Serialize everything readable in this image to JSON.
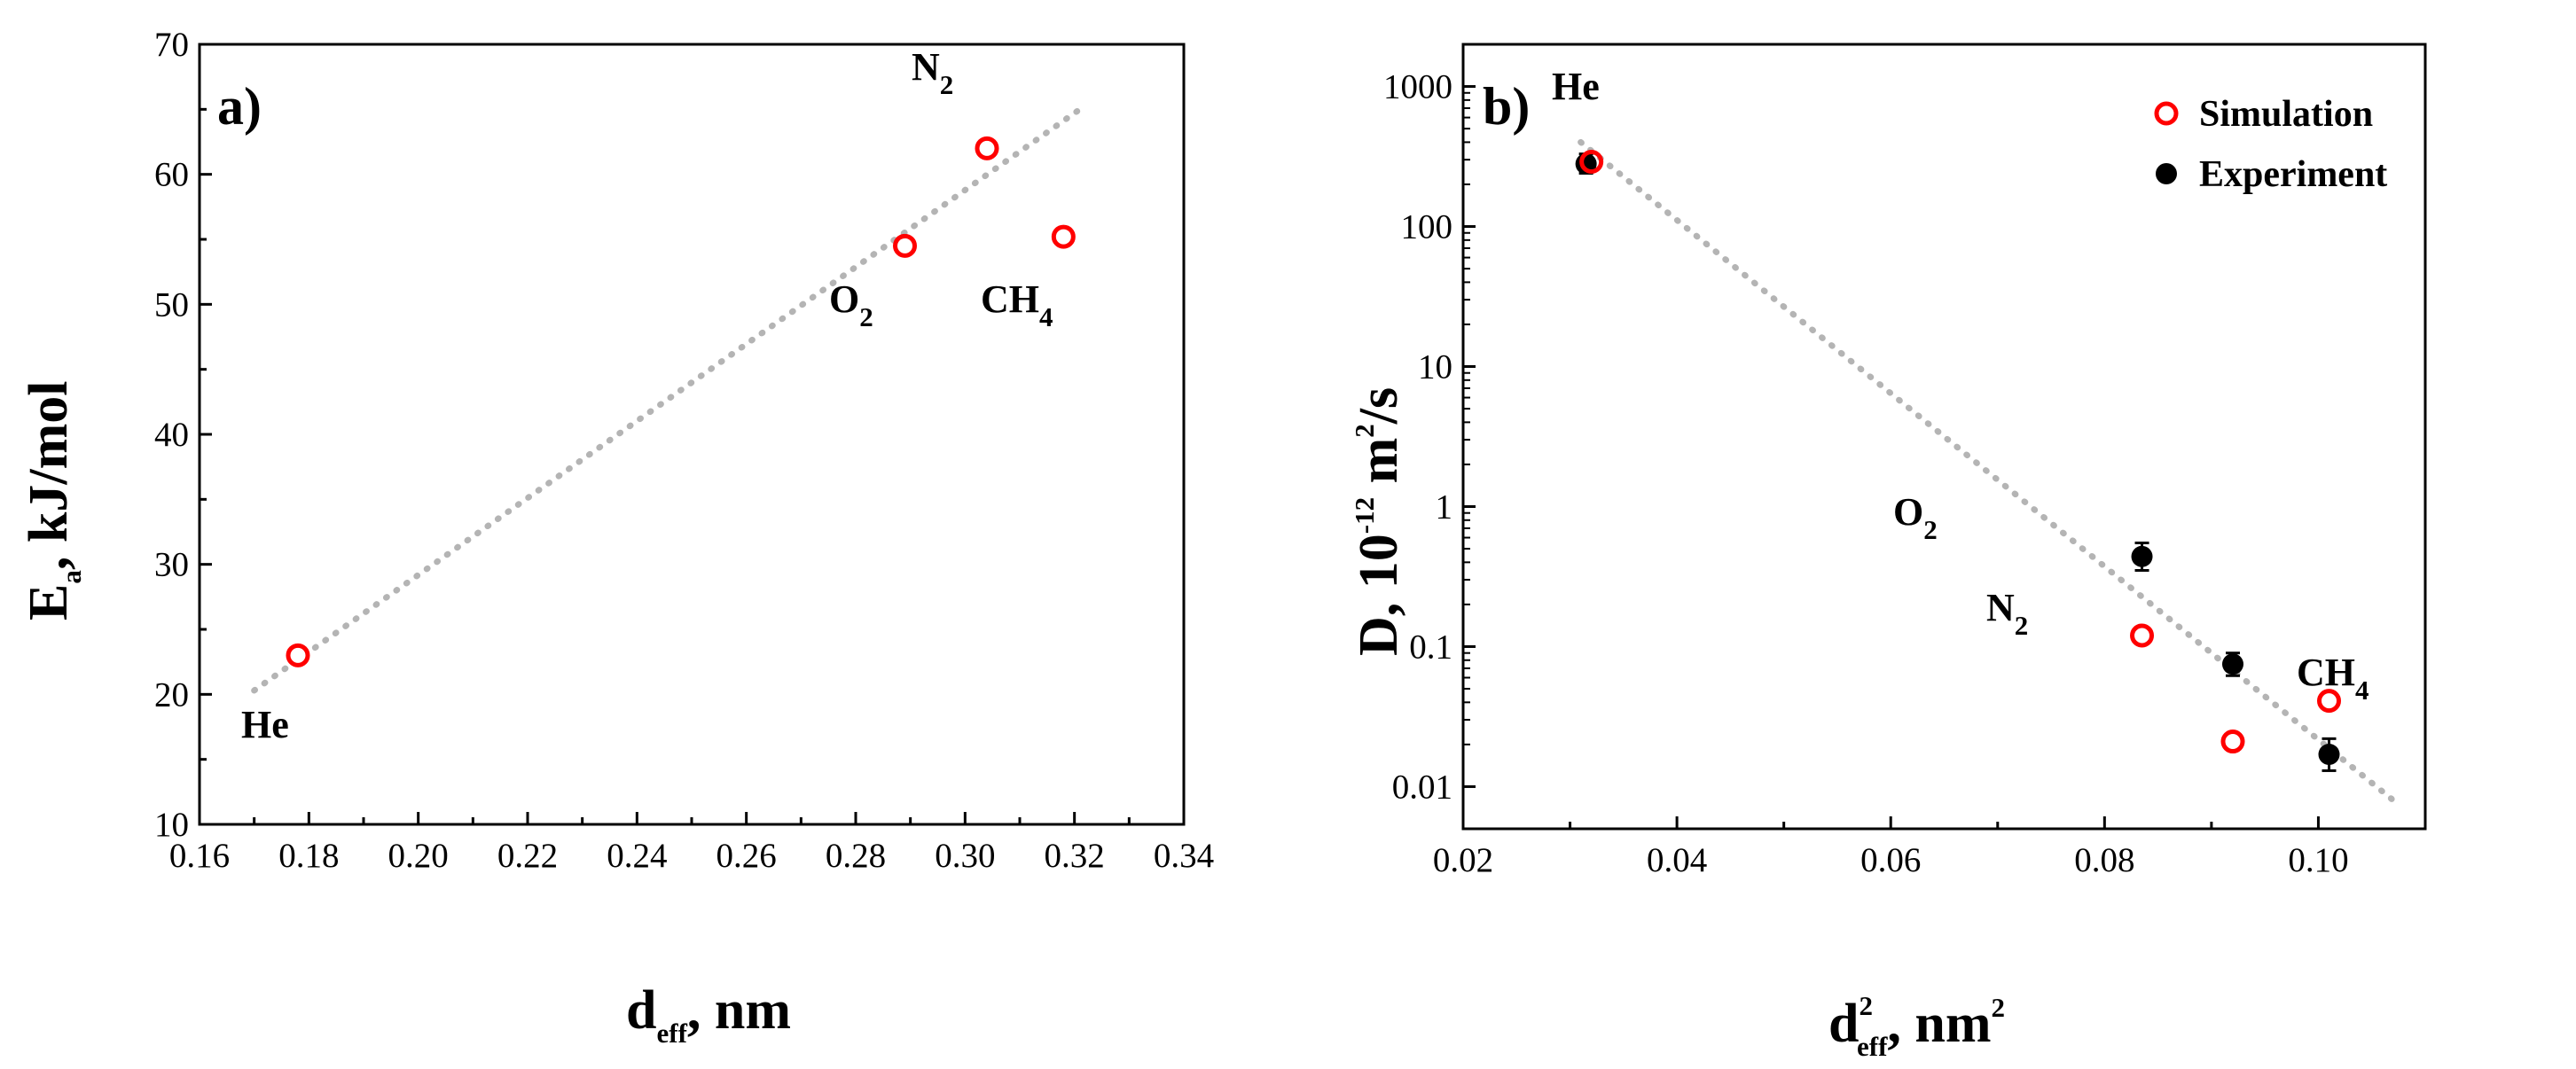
{
  "chart_data": [
    {
      "type": "scatter",
      "panel_label": "a)",
      "xlabel": {
        "main": "d",
        "sub": "eff",
        "rest": ", nm"
      },
      "ylabel": {
        "main": "E",
        "sub": "a",
        "rest": ", kJ/mol"
      },
      "xlim": [
        0.16,
        0.34
      ],
      "ylim": [
        10,
        70
      ],
      "xticks": [
        "0.16",
        "0.18",
        "0.20",
        "0.22",
        "0.24",
        "0.26",
        "0.28",
        "0.30",
        "0.32",
        "0.34"
      ],
      "yticks": [
        "10",
        "20",
        "30",
        "40",
        "50",
        "60",
        "70"
      ],
      "series": [
        {
          "name": "Simulation",
          "marker": "open-circle",
          "color": "#ff0000",
          "points": [
            {
              "x": 0.178,
              "y": 23.0,
              "label": "He"
            },
            {
              "x": 0.289,
              "y": 54.5,
              "label": "O2"
            },
            {
              "x": 0.304,
              "y": 62.0,
              "label": "N2"
            },
            {
              "x": 0.318,
              "y": 55.2,
              "label": "CH4"
            }
          ]
        }
      ],
      "fit_line": {
        "style": "dotted",
        "color": "#b4b4b4",
        "x": [
          0.17,
          0.322
        ],
        "y": [
          20.3,
          65.3
        ]
      },
      "annotations": [
        {
          "main": "He",
          "sub": ""
        },
        {
          "main": "O",
          "sub": "2"
        },
        {
          "main": "N",
          "sub": "2"
        },
        {
          "main": "CH",
          "sub": "4"
        }
      ]
    },
    {
      "type": "scatter",
      "panel_label": "b)",
      "xlabel": {
        "main": "d",
        "sup": "2",
        "sub": "eff",
        "rest": ", nm",
        "rest_sup": "2"
      },
      "ylabel": {
        "main": "D, 10",
        "sup": "-12",
        "rest": " m",
        "rest_sup": "2",
        "tail": "/s"
      },
      "yscale": "log",
      "xlim": [
        0.02,
        0.11
      ],
      "ylim": [
        0.005,
        2000
      ],
      "xticks": [
        "0.02",
        "0.04",
        "0.06",
        "0.08",
        "0.10"
      ],
      "yticks": [
        "0.01",
        "0.1",
        "1",
        "10",
        "100",
        "1000"
      ],
      "series": [
        {
          "name": "Simulation",
          "marker": "open-circle",
          "color": "#ff0000",
          "points": [
            {
              "x": 0.032,
              "y": 290
            },
            {
              "x": 0.0835,
              "y": 0.12
            },
            {
              "x": 0.092,
              "y": 0.021
            },
            {
              "x": 0.101,
              "y": 0.041
            }
          ]
        },
        {
          "name": "Experiment",
          "marker": "filled-circle",
          "color": "#000000",
          "points": [
            {
              "x": 0.0315,
              "y": 280,
              "err_lo": 240,
              "err_hi": 330
            },
            {
              "x": 0.0835,
              "y": 0.44,
              "err_lo": 0.35,
              "err_hi": 0.55
            },
            {
              "x": 0.092,
              "y": 0.075,
              "err_lo": 0.062,
              "err_hi": 0.09
            },
            {
              "x": 0.101,
              "y": 0.017,
              "err_lo": 0.013,
              "err_hi": 0.022
            }
          ]
        }
      ],
      "fit_line": {
        "style": "dotted",
        "color": "#b4b4b4",
        "x": [
          0.031,
          0.107
        ],
        "y": [
          400,
          0.008
        ]
      },
      "annotations": [
        {
          "main": "He",
          "sub": ""
        },
        {
          "main": "O",
          "sub": "2"
        },
        {
          "main": "N",
          "sub": "2"
        },
        {
          "main": "CH",
          "sub": "4"
        }
      ],
      "legend": {
        "position": "top-right",
        "entries": [
          "Simulation",
          "Experiment"
        ]
      }
    }
  ]
}
